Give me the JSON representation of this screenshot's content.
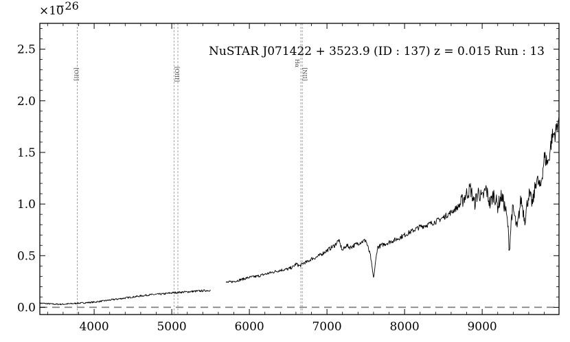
{
  "chart_data": {
    "type": "line",
    "title": "NuSTAR J071422 + 3523.9 (ID : 137)   z = 0.015   Run : 13",
    "xlabel": "",
    "ylabel": "",
    "y_multiplier": "×10",
    "y_exponent": "−26",
    "xlim": [
      3300,
      9990
    ],
    "ylim": [
      -0.07,
      2.75
    ],
    "xticks": [
      4000,
      5000,
      6000,
      7000,
      8000,
      9000
    ],
    "xtick_labels": [
      "4000",
      "5000",
      "6000",
      "7000",
      "8000",
      "9000"
    ],
    "yticks": [
      0.0,
      0.5,
      1.0,
      1.5,
      2.0,
      2.5
    ],
    "ytick_labels": [
      "0.0",
      "0.5",
      "1.0",
      "1.5",
      "2.0",
      "2.5"
    ],
    "zero_line": 0.0,
    "emission_lines": [
      {
        "label": "[OII]",
        "x": 3782
      },
      {
        "label": "[OIII]",
        "x": 5029
      },
      {
        "label": "[OIII]",
        "x": 5079
      },
      {
        "label": "Hα",
        "x": 6663
      },
      {
        "label": "[NII]",
        "x": 6682
      }
    ],
    "series": [
      {
        "color": "#000000",
        "segments": [
          {
            "x": [
              3300,
              3400,
              3500,
              3600,
              3700,
              3800,
              3900,
              4000,
              4100,
              4200,
              4300,
              4400,
              4500,
              4600,
              4700,
              4800,
              4900,
              5000,
              5100,
              5200,
              5300,
              5400,
              5500
            ],
            "y": [
              0.04,
              0.035,
              0.03,
              0.03,
              0.035,
              0.04,
              0.045,
              0.05,
              0.06,
              0.07,
              0.08,
              0.09,
              0.1,
              0.11,
              0.12,
              0.125,
              0.13,
              0.14,
              0.145,
              0.15,
              0.155,
              0.16,
              0.165
            ]
          },
          {
            "x": [
              5700,
              5800,
              5900,
              6000,
              6100,
              6200,
              6300,
              6400,
              6500,
              6560,
              6600,
              6650,
              6700,
              6750,
              6800,
              6850,
              6900,
              7000,
              7100,
              7150,
              7200,
              7250,
              7300,
              7400,
              7500,
              7560,
              7600,
              7650,
              7700,
              7800,
              7900,
              8000,
              8100,
              8200,
              8300,
              8400,
              8500,
              8600,
              8700,
              8800,
              8850,
              8900,
              8950,
              9000,
              9050,
              9100,
              9150,
              9200,
              9250,
              9300,
              9330,
              9350,
              9380,
              9400,
              9450,
              9500,
              9550,
              9600,
              9650,
              9700,
              9750,
              9800,
              9850,
              9900,
              9950,
              9990
            ],
            "y": [
              0.24,
              0.25,
              0.27,
              0.29,
              0.3,
              0.32,
              0.34,
              0.36,
              0.37,
              0.39,
              0.42,
              0.4,
              0.43,
              0.44,
              0.47,
              0.48,
              0.5,
              0.55,
              0.6,
              0.65,
              0.55,
              0.6,
              0.58,
              0.62,
              0.65,
              0.5,
              0.28,
              0.58,
              0.6,
              0.63,
              0.66,
              0.7,
              0.74,
              0.78,
              0.8,
              0.83,
              0.87,
              0.92,
              0.98,
              1.1,
              1.15,
              1.0,
              1.12,
              1.05,
              1.15,
              1.0,
              1.1,
              0.98,
              1.08,
              0.95,
              0.8,
              0.55,
              0.9,
              0.95,
              0.75,
              1.05,
              0.85,
              1.1,
              1.0,
              1.25,
              1.15,
              1.45,
              1.4,
              1.65,
              1.7,
              1.85
            ]
          }
        ]
      }
    ]
  }
}
